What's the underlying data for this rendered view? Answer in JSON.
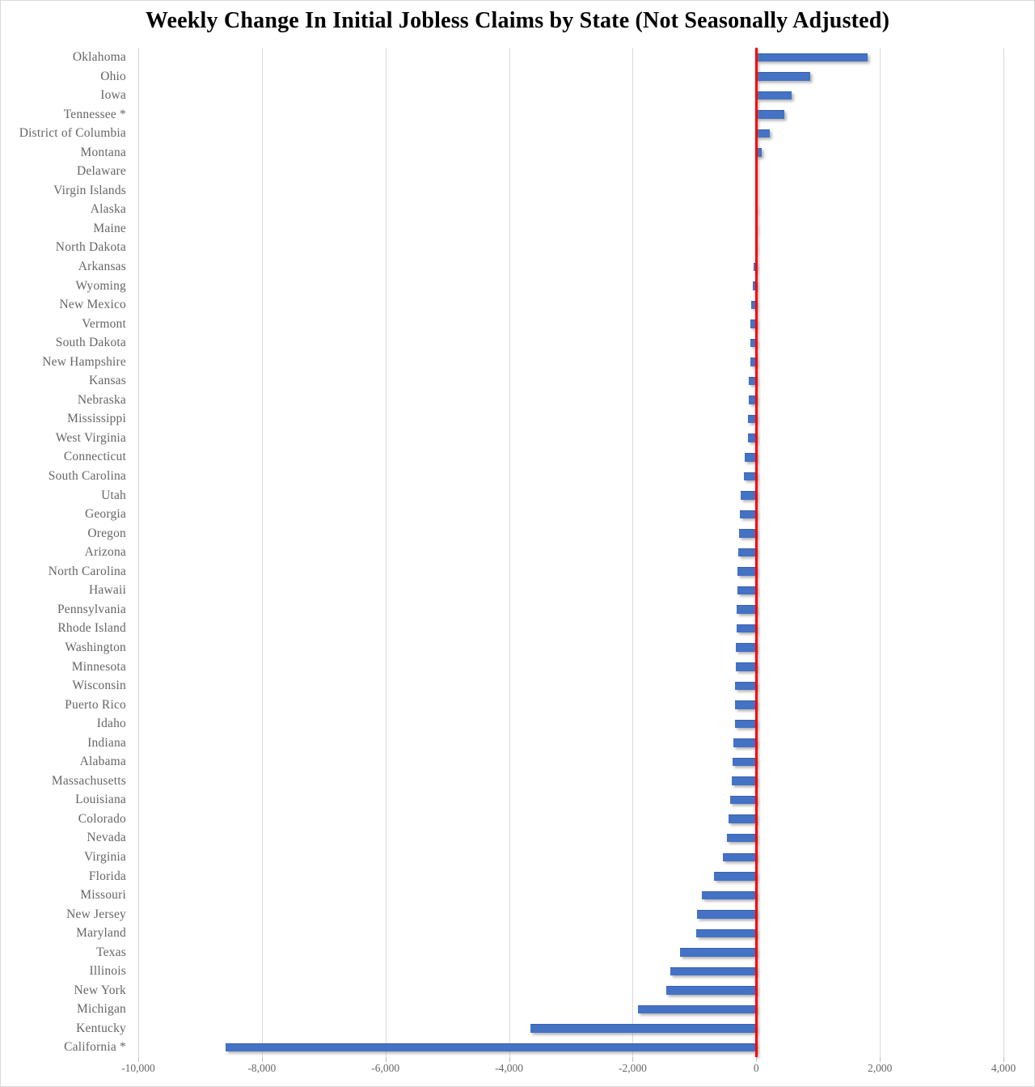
{
  "chart_data": {
    "type": "bar",
    "orientation": "horizontal",
    "title": "Weekly Change In Initial Jobless Claims by State (Not Seasonally Adjusted)",
    "categories": [
      "Oklahoma",
      "Ohio",
      "Iowa",
      "Tennessee *",
      "District of Columbia",
      "Montana",
      "Delaware",
      "Virgin Islands",
      "Alaska",
      "Maine",
      "North Dakota",
      "Arkansas",
      "Wyoming",
      "New Mexico",
      "Vermont",
      "South Dakota",
      "New Hampshire",
      "Kansas",
      "Nebraska",
      "Mississippi",
      "West Virginia",
      "Connecticut",
      "South Carolina",
      "Utah",
      "Georgia",
      "Oregon",
      "Arizona",
      "North Carolina",
      "Hawaii",
      "Pennsylvania",
      "Rhode Island",
      "Washington",
      "Minnesota",
      "Wisconsin",
      "Puerto Rico",
      "Idaho",
      "Indiana",
      "Alabama",
      "Massachusetts",
      "Louisiana",
      "Colorado",
      "Nevada",
      "Virginia",
      "Florida",
      "Missouri",
      "New Jersey",
      "Maryland",
      "Texas",
      "Illinois",
      "New York",
      "Michigan",
      "Kentucky",
      "California *"
    ],
    "values": [
      1800,
      870,
      570,
      450,
      215,
      90,
      0,
      0,
      -5,
      -10,
      -20,
      -40,
      -55,
      -80,
      -90,
      -95,
      -100,
      -115,
      -125,
      -130,
      -140,
      -190,
      -205,
      -250,
      -260,
      -280,
      -295,
      -300,
      -305,
      -315,
      -320,
      -325,
      -330,
      -340,
      -345,
      -350,
      -365,
      -380,
      -390,
      -420,
      -450,
      -480,
      -535,
      -690,
      -880,
      -955,
      -975,
      -1230,
      -1395,
      -1460,
      -1910,
      -3660,
      -8590
    ],
    "xlabel": "",
    "ylabel": "",
    "xlim": [
      -10000,
      4000
    ],
    "x_tick_values": [
      -10000,
      -8000,
      -6000,
      -4000,
      -2000,
      0,
      2000,
      4000
    ],
    "x_tick_labels": [
      "-10,000",
      "-8,000",
      "-6,000",
      "-4,000",
      "-2,000",
      "0",
      "2,000",
      "4,000"
    ],
    "zero_line_value": 0,
    "grid": "vertical",
    "legend_position": "none",
    "colors": {
      "bar": "#4472c4",
      "bar_edge": "#3a61a9",
      "zero_line": "#fe0000",
      "gridline": "#d9d9d9",
      "tick_mark": "#bfbfbf",
      "label_text": "#666666",
      "title_text": "#000000",
      "background": "#ffffff"
    }
  }
}
